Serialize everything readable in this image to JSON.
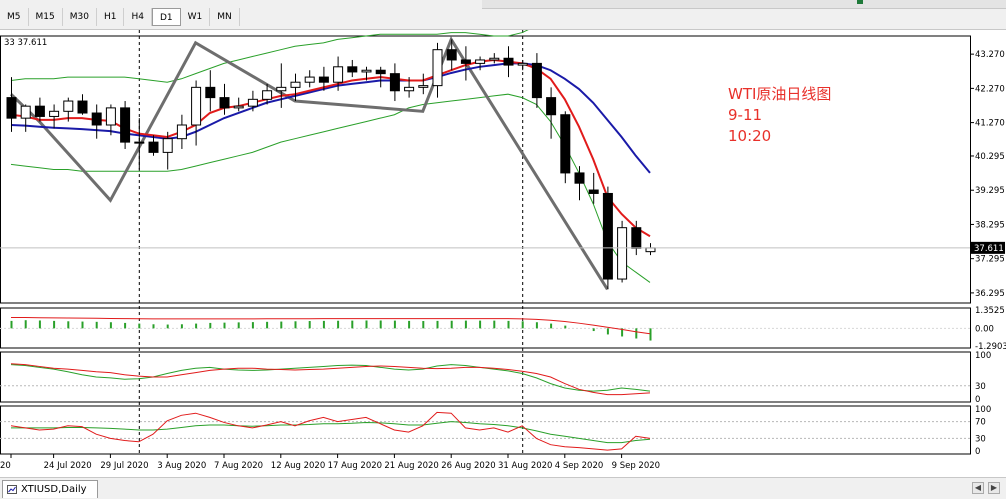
{
  "toolbar": {
    "timeframes": [
      "M5",
      "M15",
      "M30",
      "H1",
      "H4",
      "D1",
      "W1",
      "MN"
    ],
    "active": "D1"
  },
  "header_text": "33 37.611",
  "symbol_tab": "XTIUSD,Daily",
  "annotation": {
    "line1": "WTI原油日线图",
    "line2": "9-11",
    "line3": "10:20"
  },
  "colors": {
    "bull_body": "#ffffff",
    "bear_body": "#000000",
    "candle_edge": "#000000",
    "ma_red": "#e11b1b",
    "ma_blue": "#1a1aa8",
    "bands": "#2aa02a",
    "zigzag": "#6e6e6e",
    "hist": "#2aa02a",
    "osc_red": "#e11b1b",
    "osc_green": "#2aa02a",
    "annotation": "#e8302a"
  },
  "chart_data": [
    {
      "type": "candlestick",
      "title": "XTIUSD,Daily",
      "ylim": [
        36.0,
        43.8
      ],
      "yticks": [
        "43.270",
        "42.270",
        "41.270",
        "40.295",
        "39.295",
        "38.295",
        "37.295",
        "36.295"
      ],
      "ytick_values": [
        43.27,
        42.27,
        41.27,
        40.295,
        39.295,
        38.295,
        37.295,
        36.295
      ],
      "current_price": "37.611",
      "current_value": 37.611,
      "xtick_labels": [
        "20",
        "24 Jul 2020",
        "29 Jul 2020",
        "3 Aug 2020",
        "7 Aug 2020",
        "12 Aug 2020",
        "17 Aug 2020",
        "21 Aug 2020",
        "26 Aug 2020",
        "31 Aug 2020",
        "4 Sep 2020",
        "9 Sep 2020"
      ],
      "xtick_bars": [
        0,
        3,
        7,
        11,
        15,
        19,
        23,
        27,
        31,
        35,
        39,
        43
      ],
      "vlines_at_bar": [
        9,
        36
      ],
      "candles": [
        [
          42.0,
          42.6,
          41.0,
          41.4
        ],
        [
          41.4,
          41.8,
          41.0,
          41.75
        ],
        [
          41.75,
          42.0,
          41.3,
          41.45
        ],
        [
          41.45,
          41.8,
          41.1,
          41.6
        ],
        [
          41.6,
          42.0,
          41.3,
          41.9
        ],
        [
          41.9,
          42.1,
          41.5,
          41.55
        ],
        [
          41.55,
          41.8,
          40.8,
          41.2
        ],
        [
          41.2,
          41.8,
          40.9,
          41.7
        ],
        [
          41.7,
          41.9,
          40.5,
          40.7
        ],
        [
          40.7,
          41.4,
          39.9,
          40.7
        ],
        [
          40.7,
          40.9,
          40.3,
          40.4
        ],
        [
          40.4,
          41.0,
          39.9,
          40.8
        ],
        [
          40.8,
          41.5,
          40.5,
          41.2
        ],
        [
          41.2,
          42.5,
          40.6,
          42.3
        ],
        [
          42.3,
          42.8,
          41.6,
          42.0
        ],
        [
          42.0,
          42.4,
          41.5,
          41.7
        ],
        [
          41.7,
          42.0,
          41.6,
          41.75
        ],
        [
          41.75,
          42.2,
          41.6,
          41.95
        ],
        [
          41.95,
          42.4,
          41.8,
          42.2
        ],
        [
          42.2,
          43.0,
          41.7,
          42.3
        ],
        [
          42.3,
          42.7,
          41.9,
          42.45
        ],
        [
          42.45,
          42.8,
          42.3,
          42.6
        ],
        [
          42.6,
          42.9,
          42.2,
          42.45
        ],
        [
          42.45,
          43.2,
          42.2,
          42.9
        ],
        [
          42.9,
          43.1,
          42.6,
          42.75
        ],
        [
          42.75,
          42.9,
          42.5,
          42.8
        ],
        [
          42.8,
          42.9,
          42.3,
          42.7
        ],
        [
          42.7,
          43.0,
          41.9,
          42.2
        ],
        [
          42.2,
          42.6,
          42.0,
          42.3
        ],
        [
          42.3,
          42.7,
          42.1,
          42.35
        ],
        [
          42.35,
          43.6,
          42.0,
          43.4
        ],
        [
          43.4,
          43.7,
          42.8,
          43.1
        ],
        [
          43.1,
          43.5,
          42.5,
          43.0
        ],
        [
          43.0,
          43.2,
          42.8,
          43.1
        ],
        [
          43.1,
          43.3,
          43.0,
          43.15
        ],
        [
          43.15,
          43.5,
          42.6,
          42.95
        ],
        [
          42.95,
          43.1,
          42.8,
          43.0
        ],
        [
          43.0,
          43.3,
          41.7,
          42.0
        ],
        [
          42.0,
          42.3,
          40.8,
          41.5
        ],
        [
          41.5,
          41.6,
          39.5,
          39.8
        ],
        [
          39.8,
          40.0,
          39.0,
          39.5
        ],
        [
          39.3,
          39.8,
          38.9,
          39.2
        ],
        [
          39.2,
          39.4,
          36.4,
          36.7
        ],
        [
          36.7,
          38.4,
          36.6,
          38.2
        ],
        [
          38.2,
          38.4,
          37.4,
          37.6
        ],
        [
          37.5,
          37.75,
          37.4,
          37.61
        ]
      ],
      "ma_red": [
        41.5,
        41.45,
        41.35,
        41.35,
        41.4,
        41.4,
        41.35,
        41.32,
        41.1,
        40.95,
        40.9,
        40.85,
        41.0,
        41.2,
        41.55,
        41.7,
        41.75,
        41.85,
        41.95,
        42.05,
        42.1,
        42.2,
        42.3,
        42.4,
        42.5,
        42.55,
        42.6,
        42.55,
        42.5,
        42.5,
        42.65,
        42.8,
        42.95,
        43.05,
        43.1,
        43.05,
        43.0,
        42.85,
        42.55,
        41.95,
        41.15,
        40.2,
        39.1,
        38.6,
        38.2,
        37.95
      ],
      "ma_blue": [
        41.2,
        41.18,
        41.15,
        41.12,
        41.1,
        41.08,
        41.05,
        41.02,
        40.95,
        40.9,
        40.85,
        40.8,
        40.85,
        41.0,
        41.2,
        41.4,
        41.55,
        41.7,
        41.85,
        41.95,
        42.05,
        42.15,
        42.25,
        42.35,
        42.4,
        42.45,
        42.5,
        42.5,
        42.5,
        42.5,
        42.6,
        42.72,
        42.82,
        42.9,
        42.95,
        43.0,
        43.0,
        42.95,
        42.8,
        42.55,
        42.25,
        41.85,
        41.35,
        40.85,
        40.3,
        39.8
      ],
      "band_upper": [
        42.5,
        42.55,
        42.55,
        42.55,
        42.6,
        42.6,
        42.6,
        42.6,
        42.6,
        42.55,
        42.5,
        42.45,
        42.55,
        42.7,
        42.85,
        43.0,
        43.1,
        43.2,
        43.3,
        43.4,
        43.5,
        43.55,
        43.6,
        43.7,
        43.75,
        43.8,
        43.85,
        43.85,
        43.85,
        43.85,
        43.85,
        43.9,
        43.9,
        43.85,
        43.8,
        43.8,
        43.9,
        44.1,
        44.3,
        44.6,
        44.8,
        44.9,
        44.9,
        44.8,
        44.7,
        44.6
      ],
      "band_lower": [
        40.05,
        40.0,
        39.95,
        39.9,
        39.9,
        39.85,
        39.85,
        39.85,
        39.85,
        39.85,
        39.85,
        39.85,
        39.9,
        40.0,
        40.1,
        40.2,
        40.3,
        40.4,
        40.55,
        40.7,
        40.8,
        40.9,
        41.0,
        41.1,
        41.2,
        41.3,
        41.4,
        41.5,
        41.7,
        41.8,
        41.85,
        41.9,
        41.95,
        42.0,
        42.05,
        42.1,
        42.0,
        41.8,
        41.3,
        40.6,
        39.8,
        38.9,
        37.8,
        37.2,
        36.9,
        36.6
      ],
      "zigzag": [
        [
          0,
          42.1
        ],
        [
          2,
          41.3
        ],
        [
          7,
          39.0
        ],
        [
          13,
          43.6
        ],
        [
          20,
          41.9
        ],
        [
          29,
          41.6
        ],
        [
          31,
          43.7
        ],
        [
          42,
          36.4
        ]
      ]
    },
    {
      "type": "histogram",
      "yticks": [
        "1.3525",
        "0.00",
        "-1.2903"
      ],
      "ytick_values": [
        1.3525,
        0.0,
        -1.2903
      ],
      "values": [
        0.55,
        0.6,
        0.58,
        0.55,
        0.52,
        0.5,
        0.48,
        0.45,
        0.4,
        0.35,
        0.3,
        0.28,
        0.3,
        0.35,
        0.4,
        0.42,
        0.44,
        0.46,
        0.48,
        0.5,
        0.52,
        0.54,
        0.55,
        0.56,
        0.57,
        0.58,
        0.58,
        0.57,
        0.55,
        0.54,
        0.55,
        0.56,
        0.57,
        0.57,
        0.57,
        0.55,
        0.52,
        0.45,
        0.35,
        0.2,
        0.0,
        -0.2,
        -0.45,
        -0.6,
        -0.75,
        -0.9
      ],
      "signal": [
        0.8,
        0.8,
        0.78,
        0.77,
        0.76,
        0.75,
        0.74,
        0.73,
        0.72,
        0.71,
        0.7,
        0.7,
        0.7,
        0.7,
        0.7,
        0.7,
        0.7,
        0.7,
        0.71,
        0.71,
        0.71,
        0.71,
        0.72,
        0.72,
        0.72,
        0.72,
        0.72,
        0.72,
        0.72,
        0.72,
        0.72,
        0.72,
        0.72,
        0.72,
        0.72,
        0.72,
        0.7,
        0.66,
        0.6,
        0.5,
        0.38,
        0.24,
        0.08,
        -0.08,
        -0.25,
        -0.4
      ]
    },
    {
      "type": "line",
      "yticks": [
        "100",
        "30",
        "0"
      ],
      "ytick_values": [
        100,
        30,
        0
      ],
      "series_a": [
        80,
        78,
        74,
        70,
        68,
        65,
        62,
        60,
        55,
        52,
        50,
        50,
        55,
        60,
        65,
        68,
        70,
        70,
        68,
        67,
        66,
        67,
        68,
        70,
        72,
        74,
        75,
        74,
        72,
        70,
        69,
        70,
        72,
        72,
        70,
        67,
        63,
        58,
        50,
        35,
        22,
        15,
        10,
        10,
        12,
        14
      ],
      "series_b": [
        78,
        76,
        72,
        68,
        62,
        55,
        50,
        48,
        45,
        46,
        50,
        58,
        65,
        70,
        72,
        68,
        66,
        65,
        66,
        68,
        70,
        72,
        74,
        76,
        77,
        76,
        72,
        68,
        66,
        68,
        75,
        78,
        76,
        72,
        68,
        64,
        58,
        48,
        35,
        25,
        20,
        18,
        20,
        25,
        22,
        18
      ]
    },
    {
      "type": "line",
      "yticks": [
        "100",
        "70",
        "30",
        "0"
      ],
      "ytick_values": [
        100,
        70,
        30,
        0
      ],
      "series_a": [
        60,
        55,
        50,
        52,
        60,
        58,
        40,
        30,
        25,
        22,
        40,
        72,
        85,
        90,
        80,
        68,
        60,
        55,
        62,
        70,
        60,
        72,
        80,
        70,
        75,
        80,
        65,
        50,
        45,
        60,
        92,
        90,
        55,
        50,
        55,
        45,
        60,
        30,
        15,
        10,
        8,
        5,
        2,
        5,
        35,
        30
      ],
      "series_b": [
        55,
        55,
        55,
        55,
        56,
        56,
        55,
        54,
        52,
        50,
        50,
        52,
        56,
        60,
        62,
        62,
        60,
        59,
        60,
        62,
        62,
        63,
        65,
        65,
        66,
        68,
        67,
        65,
        62,
        62,
        66,
        70,
        68,
        65,
        63,
        60,
        55,
        48,
        40,
        35,
        30,
        25,
        20,
        20,
        25,
        28
      ]
    }
  ]
}
